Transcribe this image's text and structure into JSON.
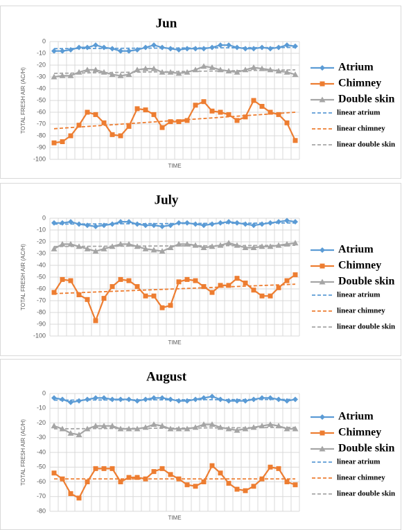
{
  "chart_data": [
    {
      "type": "line",
      "title": "Jun",
      "y_label": "TOTAL FRESH AIR (AC/H)",
      "x_label": "TIME",
      "categories": [
        null,
        null,
        null,
        null,
        null,
        null,
        null,
        null,
        null,
        null,
        null,
        null,
        null,
        null,
        null,
        null,
        null,
        null,
        null,
        null,
        null,
        null,
        null,
        null,
        null,
        null,
        null,
        null,
        null,
        null
      ],
      "ylim": [
        -100,
        0
      ],
      "yticks": [
        0,
        -10,
        -20,
        -30,
        -40,
        -50,
        -60,
        -70,
        -80,
        -90,
        -100
      ],
      "grid": true,
      "series": [
        {
          "name": "Atrium",
          "color": "#5b9bd5",
          "marker": "diamond",
          "values": [
            -8,
            -8,
            -7,
            -5,
            -5,
            -3,
            -5,
            -6,
            -8,
            -8,
            -7,
            -5,
            -3,
            -5,
            -6,
            -7,
            -6,
            -6,
            -6,
            -5,
            -3,
            -3,
            -5,
            -6,
            -6,
            -5,
            -6,
            -5,
            -3,
            -4
          ]
        },
        {
          "name": "Chimney",
          "color": "#ed7d31",
          "marker": "square",
          "values": [
            -86,
            -85,
            -80,
            -71,
            -60,
            -62,
            -69,
            -79,
            -80,
            -72,
            -57,
            -58,
            -62,
            -73,
            -68,
            -68,
            -67,
            -54,
            -51,
            -59,
            -60,
            -62,
            -67,
            -64,
            -50,
            -55,
            -60,
            -62,
            -69,
            -84
          ]
        },
        {
          "name": "Double skin",
          "color": "#a5a5a5",
          "marker": "triangle",
          "values": [
            -30,
            -29,
            -29,
            -26,
            -24,
            -24,
            -26,
            -28,
            -29,
            -28,
            -24,
            -23,
            -23,
            -26,
            -26,
            -27,
            -26,
            -24,
            -21,
            -22,
            -24,
            -25,
            -26,
            -24,
            -22,
            -23,
            -24,
            -25,
            -26,
            -28
          ]
        }
      ],
      "trendlines": [
        {
          "name": "linear atrium",
          "color": "#5b9bd5",
          "from": -6,
          "to": -5
        },
        {
          "name": "linear chimney",
          "color": "#ed7d31",
          "from": -74,
          "to": -60
        },
        {
          "name": "linear double skin",
          "color": "#a5a5a5",
          "from": -27,
          "to": -24
        }
      ]
    },
    {
      "type": "line",
      "title": "July",
      "y_label": "TOTAL FRESH AIR (AC/H)",
      "x_label": "TIME",
      "categories": [
        null,
        null,
        null,
        null,
        null,
        null,
        null,
        null,
        null,
        null,
        null,
        null,
        null,
        null,
        null,
        null,
        null,
        null,
        null,
        null,
        null,
        null,
        null,
        null,
        null,
        null,
        null,
        null,
        null,
        null
      ],
      "ylim": [
        -100,
        0
      ],
      "yticks": [
        0,
        -10,
        -20,
        -30,
        -40,
        -50,
        -60,
        -70,
        -80,
        -90,
        -100
      ],
      "grid": true,
      "series": [
        {
          "name": "Atrium",
          "color": "#5b9bd5",
          "marker": "diamond",
          "values": [
            -4,
            -4,
            -3,
            -5,
            -6,
            -7,
            -6,
            -5,
            -3,
            -3,
            -5,
            -6,
            -6,
            -7,
            -6,
            -4,
            -4,
            -5,
            -6,
            -5,
            -4,
            -3,
            -4,
            -5,
            -6,
            -5,
            -4,
            -3,
            -2,
            -3
          ]
        },
        {
          "name": "Chimney",
          "color": "#ed7d31",
          "marker": "square",
          "values": [
            -63,
            -52,
            -53,
            -65,
            -69,
            -87,
            -68,
            -58,
            -52,
            -53,
            -58,
            -66,
            -66,
            -76,
            -74,
            -54,
            -52,
            -53,
            -58,
            -63,
            -57,
            -57,
            -51,
            -55,
            -61,
            -66,
            -66,
            -59,
            -53,
            -48
          ]
        },
        {
          "name": "Double skin",
          "color": "#a5a5a5",
          "marker": "triangle",
          "values": [
            -26,
            -22,
            -22,
            -24,
            -26,
            -28,
            -26,
            -24,
            -22,
            -22,
            -24,
            -26,
            -27,
            -28,
            -25,
            -22,
            -22,
            -23,
            -25,
            -24,
            -23,
            -21,
            -23,
            -25,
            -25,
            -24,
            -24,
            -23,
            -22,
            -21
          ]
        }
      ],
      "trendlines": [
        {
          "name": "linear atrium",
          "color": "#5b9bd5",
          "from": -5,
          "to": -4
        },
        {
          "name": "linear chimney",
          "color": "#ed7d31",
          "from": -64,
          "to": -56
        },
        {
          "name": "linear double skin",
          "color": "#a5a5a5",
          "from": -24,
          "to": -23
        }
      ]
    },
    {
      "type": "line",
      "title": "August",
      "y_label": "TOTAL FRESH AIR (AC/H)",
      "x_label": "TIME",
      "categories": [
        null,
        null,
        null,
        null,
        null,
        null,
        null,
        null,
        null,
        null,
        null,
        null,
        null,
        null,
        null,
        null,
        null,
        null,
        null,
        null,
        null,
        null,
        null,
        null,
        null,
        null,
        null,
        null,
        null,
        null
      ],
      "ylim": [
        -80,
        0
      ],
      "yticks": [
        0,
        -10,
        -20,
        -30,
        -40,
        -50,
        -60,
        -70,
        -80
      ],
      "grid": true,
      "series": [
        {
          "name": "Atrium",
          "color": "#5b9bd5",
          "marker": "diamond",
          "values": [
            -3,
            -4,
            -6,
            -5,
            -4,
            -3,
            -3,
            -4,
            -4,
            -4,
            -5,
            -4,
            -3,
            -3,
            -4,
            -5,
            -5,
            -4,
            -3,
            -2,
            -4,
            -5,
            -5,
            -5,
            -4,
            -3,
            -3,
            -4,
            -5,
            -4
          ]
        },
        {
          "name": "Chimney",
          "color": "#ed7d31",
          "marker": "square",
          "values": [
            -54,
            -58,
            -68,
            -71,
            -60,
            -51,
            -51,
            -51,
            -60,
            -57,
            -57,
            -58,
            -53,
            -51,
            -55,
            -58,
            -62,
            -63,
            -60,
            -49,
            -54,
            -61,
            -65,
            -66,
            -63,
            -58,
            -50,
            -51,
            -60,
            -62
          ]
        },
        {
          "name": "Double skin",
          "color": "#a5a5a5",
          "marker": "triangle",
          "values": [
            -22,
            -24,
            -27,
            -28,
            -24,
            -22,
            -22,
            -22,
            -24,
            -24,
            -24,
            -23,
            -21,
            -22,
            -24,
            -24,
            -24,
            -23,
            -21,
            -21,
            -23,
            -24,
            -25,
            -24,
            -23,
            -22,
            -21,
            -22,
            -24,
            -24
          ]
        }
      ],
      "trendlines": [
        {
          "name": "linear atrium",
          "color": "#5b9bd5",
          "from": -4.5,
          "to": -4
        },
        {
          "name": "linear chimney",
          "color": "#ed7d31",
          "from": -58,
          "to": -58
        },
        {
          "name": "linear double skin",
          "color": "#a5a5a5",
          "from": -24,
          "to": -23
        }
      ]
    }
  ]
}
